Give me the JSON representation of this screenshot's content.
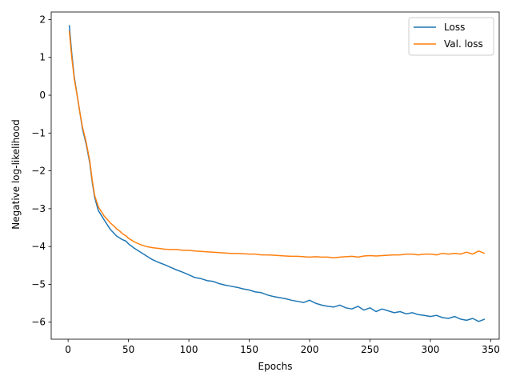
{
  "chart_data": {
    "type": "line",
    "title": "",
    "xlabel": "Epochs",
    "ylabel": "Negative log-likelihood",
    "xlim": [
      -14,
      357
    ],
    "ylim": [
      -6.45,
      2.2
    ],
    "xticks": [
      0,
      50,
      100,
      150,
      200,
      250,
      300,
      350
    ],
    "yticks": [
      2,
      1,
      0,
      -1,
      -2,
      -3,
      -4,
      -5,
      -6
    ],
    "grid": false,
    "legend_position": "top-right",
    "series": [
      {
        "name": "Loss",
        "color": "#1f77b4",
        "x": [
          1,
          3,
          5,
          8,
          10,
          12,
          15,
          18,
          20,
          22,
          25,
          28,
          30,
          33,
          35,
          38,
          40,
          43,
          45,
          48,
          50,
          55,
          60,
          65,
          70,
          75,
          80,
          85,
          90,
          95,
          100,
          105,
          110,
          115,
          120,
          125,
          130,
          135,
          140,
          145,
          150,
          155,
          160,
          165,
          170,
          175,
          180,
          185,
          190,
          195,
          200,
          205,
          210,
          215,
          220,
          225,
          230,
          235,
          240,
          245,
          250,
          255,
          260,
          265,
          270,
          275,
          280,
          285,
          290,
          295,
          300,
          305,
          310,
          315,
          320,
          325,
          330,
          335,
          340,
          345
        ],
        "values": [
          1.85,
          1.1,
          0.5,
          -0.1,
          -0.5,
          -0.9,
          -1.3,
          -1.8,
          -2.3,
          -2.7,
          -3.05,
          -3.2,
          -3.3,
          -3.45,
          -3.55,
          -3.65,
          -3.72,
          -3.78,
          -3.82,
          -3.86,
          -3.93,
          -4.05,
          -4.15,
          -4.25,
          -4.35,
          -4.42,
          -4.48,
          -4.55,
          -4.62,
          -4.68,
          -4.75,
          -4.82,
          -4.85,
          -4.9,
          -4.92,
          -4.98,
          -5.02,
          -5.05,
          -5.08,
          -5.12,
          -5.15,
          -5.2,
          -5.22,
          -5.28,
          -5.32,
          -5.35,
          -5.38,
          -5.42,
          -5.45,
          -5.48,
          -5.42,
          -5.5,
          -5.55,
          -5.58,
          -5.6,
          -5.55,
          -5.62,
          -5.65,
          -5.58,
          -5.68,
          -5.62,
          -5.72,
          -5.65,
          -5.7,
          -5.75,
          -5.72,
          -5.78,
          -5.75,
          -5.8,
          -5.82,
          -5.85,
          -5.82,
          -5.88,
          -5.9,
          -5.85,
          -5.92,
          -5.95,
          -5.9,
          -5.98,
          -5.92
        ]
      },
      {
        "name": "Val. loss",
        "color": "#ff7f0e",
        "x": [
          1,
          3,
          5,
          8,
          10,
          12,
          15,
          18,
          20,
          22,
          25,
          28,
          30,
          33,
          35,
          38,
          40,
          43,
          45,
          48,
          50,
          55,
          60,
          65,
          70,
          75,
          80,
          85,
          90,
          95,
          100,
          105,
          110,
          115,
          120,
          125,
          130,
          135,
          140,
          145,
          150,
          155,
          160,
          165,
          170,
          175,
          180,
          185,
          190,
          195,
          200,
          205,
          210,
          215,
          220,
          225,
          230,
          235,
          240,
          245,
          250,
          255,
          260,
          265,
          270,
          275,
          280,
          285,
          290,
          295,
          300,
          305,
          310,
          315,
          320,
          325,
          330,
          335,
          340,
          345
        ],
        "values": [
          1.7,
          1.0,
          0.45,
          -0.1,
          -0.5,
          -0.85,
          -1.25,
          -1.75,
          -2.25,
          -2.65,
          -2.95,
          -3.1,
          -3.2,
          -3.3,
          -3.38,
          -3.46,
          -3.53,
          -3.6,
          -3.66,
          -3.72,
          -3.78,
          -3.88,
          -3.95,
          -4.0,
          -4.03,
          -4.05,
          -4.07,
          -4.08,
          -4.08,
          -4.1,
          -4.1,
          -4.12,
          -4.13,
          -4.14,
          -4.15,
          -4.16,
          -4.17,
          -4.18,
          -4.18,
          -4.19,
          -4.2,
          -4.2,
          -4.22,
          -4.22,
          -4.23,
          -4.24,
          -4.25,
          -4.26,
          -4.26,
          -4.27,
          -4.28,
          -4.27,
          -4.28,
          -4.28,
          -4.3,
          -4.28,
          -4.27,
          -4.26,
          -4.28,
          -4.25,
          -4.24,
          -4.25,
          -4.24,
          -4.23,
          -4.22,
          -4.22,
          -4.2,
          -4.2,
          -4.22,
          -4.2,
          -4.2,
          -4.22,
          -4.18,
          -4.2,
          -4.18,
          -4.2,
          -4.15,
          -4.2,
          -4.12,
          -4.18
        ]
      }
    ]
  }
}
